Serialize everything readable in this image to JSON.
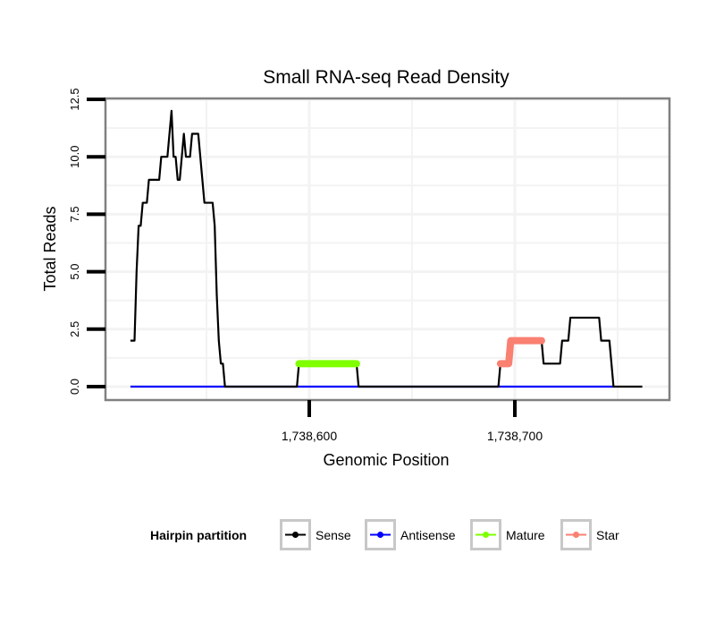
{
  "chart_data": {
    "type": "line",
    "title": "Small RNA-seq Read Density",
    "xlabel": "Genomic Position",
    "ylabel": "Total Reads",
    "xlim": [
      1738500,
      1738774
    ],
    "ylim": [
      0,
      12.5
    ],
    "x_ticks": [
      1738600,
      1738700
    ],
    "x_tick_labels": [
      "1,738,600",
      "1,738,700"
    ],
    "y_ticks": [
      0,
      2.5,
      5,
      7.5,
      10,
      12.5
    ],
    "y_tick_labels": [
      "0.0",
      "2.5",
      "5.0",
      "7.5",
      "10.0",
      "12.5"
    ],
    "grid": true,
    "legend": {
      "title": "Hairpin partition",
      "placement": "bottom",
      "entries": [
        "Sense",
        "Antisense",
        "Mature",
        "Star"
      ]
    },
    "series": [
      {
        "name": "Sense",
        "color": "#000000",
        "points": [
          [
            1738513,
            2
          ],
          [
            1738515,
            2
          ],
          [
            1738516,
            5
          ],
          [
            1738517,
            7
          ],
          [
            1738518,
            7
          ],
          [
            1738519,
            8
          ],
          [
            1738521,
            8
          ],
          [
            1738522,
            9
          ],
          [
            1738527,
            9
          ],
          [
            1738528,
            10
          ],
          [
            1738531,
            10
          ],
          [
            1738533,
            12
          ],
          [
            1738534,
            10
          ],
          [
            1738535,
            10
          ],
          [
            1738536,
            9
          ],
          [
            1738537,
            9
          ],
          [
            1738538,
            10
          ],
          [
            1738539,
            11
          ],
          [
            1738540,
            10
          ],
          [
            1738542,
            10
          ],
          [
            1738543,
            11
          ],
          [
            1738546,
            11
          ],
          [
            1738547,
            10
          ],
          [
            1738548,
            9
          ],
          [
            1738549,
            8
          ],
          [
            1738553,
            8
          ],
          [
            1738554,
            7
          ],
          [
            1738555,
            4
          ],
          [
            1738556,
            2
          ],
          [
            1738557,
            1
          ],
          [
            1738558,
            1
          ],
          [
            1738559,
            0
          ],
          [
            1738594,
            0
          ],
          [
            1738595,
            1
          ],
          [
            1738623,
            1
          ],
          [
            1738624,
            0
          ],
          [
            1738692,
            0
          ],
          [
            1738693,
            1
          ],
          [
            1738697,
            1
          ],
          [
            1738698,
            2
          ],
          [
            1738713,
            2
          ],
          [
            1738714,
            1
          ],
          [
            1738722,
            1
          ],
          [
            1738723,
            2
          ],
          [
            1738726,
            2
          ],
          [
            1738727,
            3
          ],
          [
            1738741,
            3
          ],
          [
            1738742,
            2
          ],
          [
            1738746,
            2
          ],
          [
            1738748,
            0
          ],
          [
            1738762,
            0
          ]
        ]
      },
      {
        "name": "Antisense",
        "color": "#0000ff",
        "points": [
          [
            1738513,
            0
          ],
          [
            1738748,
            0
          ]
        ]
      },
      {
        "name": "Mature",
        "color": "#7fff00",
        "points": [
          [
            1738595,
            1
          ],
          [
            1738623,
            1
          ]
        ]
      },
      {
        "name": "Star",
        "color": "#fa8072",
        "points": [
          [
            1738693,
            1
          ],
          [
            1738697,
            1
          ],
          [
            1738698,
            2
          ],
          [
            1738713,
            2
          ]
        ]
      }
    ]
  }
}
